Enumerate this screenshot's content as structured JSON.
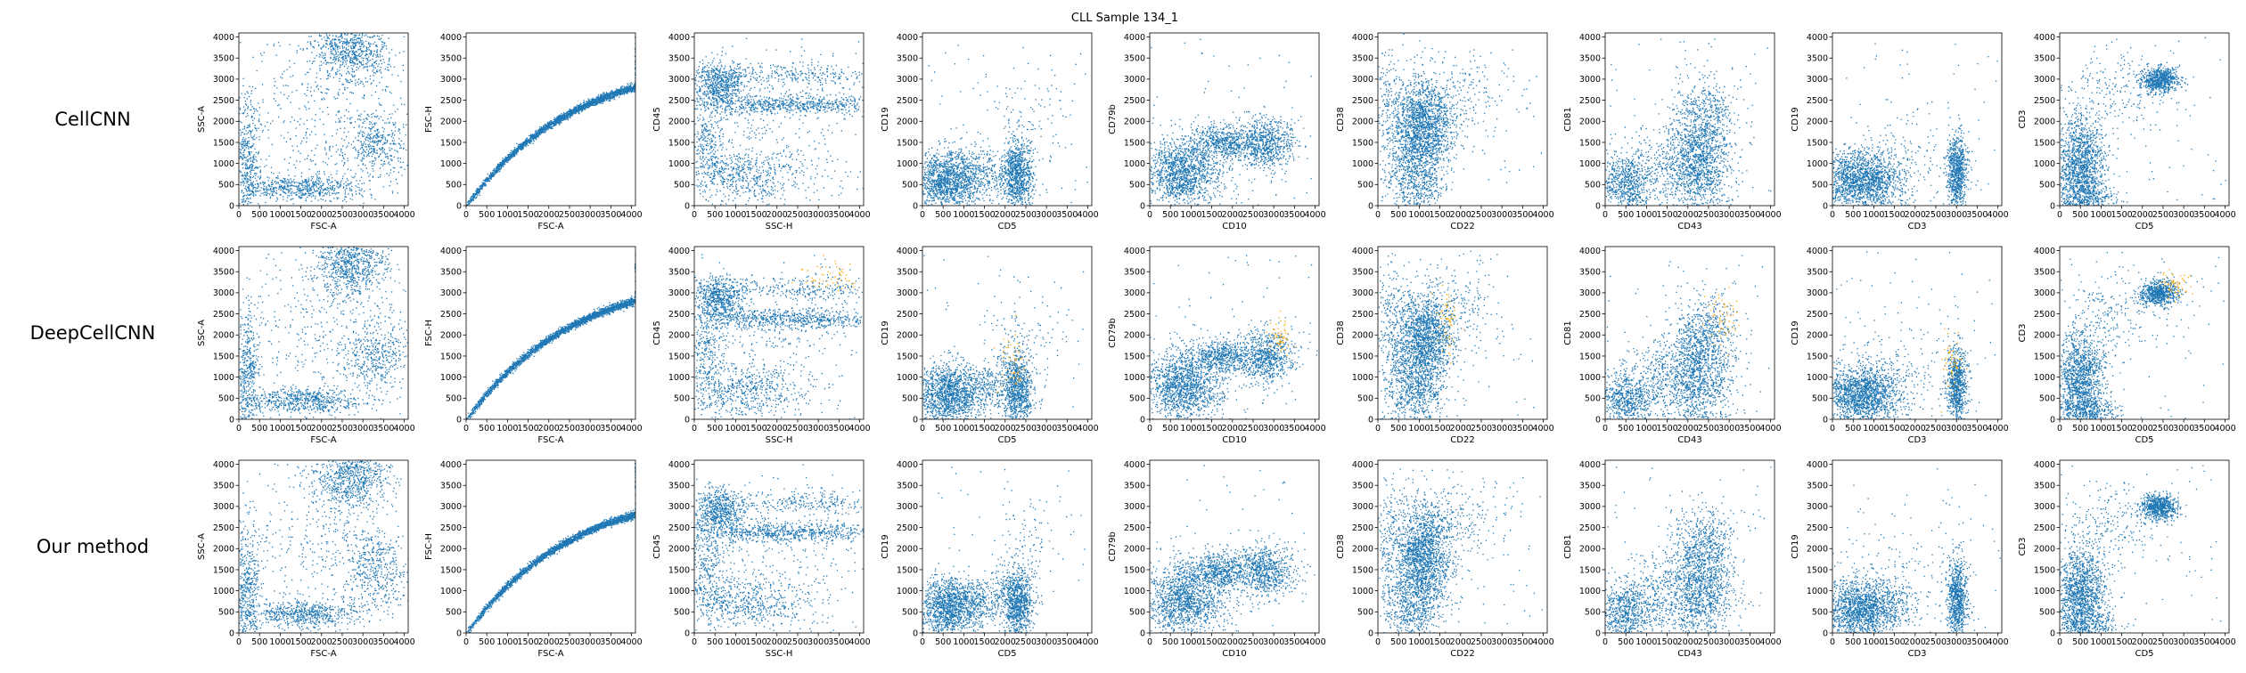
{
  "title": "CLL Sample 134_1",
  "colors": {
    "points": "#1f77b4",
    "highlight": "#ffa500",
    "axis": "#000000"
  },
  "ticks": [
    0,
    500,
    1000,
    1500,
    2000,
    2500,
    3000,
    3500,
    4000
  ],
  "chart_data": {
    "type": "scatter",
    "title": "CLL Sample 134_1",
    "xlim": [
      0,
      4096
    ],
    "ylim": [
      0,
      4096
    ],
    "rows": [
      {
        "method": "CellCNN",
        "highlight": false
      },
      {
        "method": "DeepCellCNN",
        "highlight": true
      },
      {
        "method": "Our method",
        "highlight": false
      }
    ],
    "panels": [
      {
        "xlabel": "FSC-A",
        "ylabel": "SSC-A",
        "clusters": [
          {
            "x": 2700,
            "y": 3700,
            "sx": 450,
            "sy": 400,
            "w": 0.3
          },
          {
            "x": 1500,
            "y": 450,
            "sx": 700,
            "sy": 150,
            "w": 0.22
          },
          {
            "x": 3300,
            "y": 1500,
            "sx": 400,
            "sy": 450,
            "w": 0.15
          },
          {
            "x": 200,
            "y": 1000,
            "sx": 150,
            "sy": 800,
            "w": 0.18
          },
          {
            "x": 2000,
            "y": 2000,
            "sx": 1100,
            "sy": 1100,
            "w": 0.15
          }
        ],
        "highlight_clusters": []
      },
      {
        "xlabel": "FSC-A",
        "ylabel": "FSC-H",
        "clusters": [],
        "curve": true,
        "highlight_clusters": []
      },
      {
        "xlabel": "SSC-H",
        "ylabel": "CD45",
        "clusters": [
          {
            "x": 600,
            "y": 2900,
            "sx": 300,
            "sy": 250,
            "w": 0.22
          },
          {
            "x": 2300,
            "y": 2400,
            "sx": 1200,
            "sy": 120,
            "w": 0.25
          },
          {
            "x": 2500,
            "y": 3100,
            "sx": 1000,
            "sy": 150,
            "w": 0.1
          },
          {
            "x": 1200,
            "y": 700,
            "sx": 800,
            "sy": 300,
            "w": 0.2
          },
          {
            "x": 300,
            "y": 1600,
            "sx": 250,
            "sy": 700,
            "w": 0.13
          },
          {
            "x": 1800,
            "y": 1700,
            "sx": 1200,
            "sy": 900,
            "w": 0.1
          }
        ],
        "highlight_clusters": [
          {
            "x": 3300,
            "y": 3400,
            "sx": 400,
            "sy": 200
          }
        ]
      },
      {
        "xlabel": "CD5",
        "ylabel": "CD19",
        "clusters": [
          {
            "x": 600,
            "y": 600,
            "sx": 400,
            "sy": 350,
            "w": 0.45
          },
          {
            "x": 2300,
            "y": 700,
            "sx": 180,
            "sy": 450,
            "w": 0.3
          },
          {
            "x": 1500,
            "y": 800,
            "sx": 500,
            "sy": 300,
            "w": 0.12
          },
          {
            "x": 2500,
            "y": 2000,
            "sx": 500,
            "sy": 600,
            "w": 0.03
          }
        ],
        "highlight_clusters": [
          {
            "x": 2200,
            "y": 1300,
            "sx": 200,
            "sy": 400
          }
        ]
      },
      {
        "xlabel": "CD10",
        "ylabel": "CD79b",
        "clusters": [
          {
            "x": 800,
            "y": 800,
            "sx": 450,
            "sy": 400,
            "w": 0.45
          },
          {
            "x": 1700,
            "y": 1500,
            "sx": 400,
            "sy": 200,
            "w": 0.2
          },
          {
            "x": 2800,
            "y": 1500,
            "sx": 350,
            "sy": 300,
            "w": 0.25
          },
          {
            "x": 1500,
            "y": 1000,
            "sx": 900,
            "sy": 700,
            "w": 0.05
          }
        ],
        "highlight_clusters": [
          {
            "x": 3150,
            "y": 1950,
            "sx": 120,
            "sy": 250
          }
        ]
      },
      {
        "xlabel": "CD22",
        "ylabel": "CD38",
        "clusters": [
          {
            "x": 1100,
            "y": 1900,
            "sx": 350,
            "sy": 550,
            "w": 0.55
          },
          {
            "x": 900,
            "y": 700,
            "sx": 350,
            "sy": 500,
            "w": 0.25
          },
          {
            "x": 1800,
            "y": 2700,
            "sx": 700,
            "sy": 500,
            "w": 0.08
          },
          {
            "x": 300,
            "y": 2200,
            "sx": 200,
            "sy": 800,
            "w": 0.07
          }
        ],
        "highlight_clusters": [
          {
            "x": 1700,
            "y": 2400,
            "sx": 150,
            "sy": 400
          }
        ]
      },
      {
        "xlabel": "CD43",
        "ylabel": "CD81",
        "clusters": [
          {
            "x": 2300,
            "y": 1200,
            "sx": 400,
            "sy": 800,
            "w": 0.5
          },
          {
            "x": 500,
            "y": 500,
            "sx": 350,
            "sy": 350,
            "w": 0.25
          },
          {
            "x": 1500,
            "y": 900,
            "sx": 600,
            "sy": 500,
            "w": 0.15
          },
          {
            "x": 2500,
            "y": 2300,
            "sx": 300,
            "sy": 300,
            "w": 0.05
          }
        ],
        "highlight_clusters": [
          {
            "x": 2800,
            "y": 2400,
            "sx": 200,
            "sy": 300
          }
        ]
      },
      {
        "xlabel": "CD3",
        "ylabel": "CD19",
        "clusters": [
          {
            "x": 700,
            "y": 600,
            "sx": 500,
            "sy": 350,
            "w": 0.6
          },
          {
            "x": 3000,
            "y": 800,
            "sx": 120,
            "sy": 450,
            "w": 0.28
          },
          {
            "x": 1700,
            "y": 1200,
            "sx": 900,
            "sy": 600,
            "w": 0.06
          }
        ],
        "highlight_clusters": [
          {
            "x": 2900,
            "y": 1400,
            "sx": 150,
            "sy": 350
          }
        ]
      },
      {
        "xlabel": "CD5",
        "ylabel": "CD3",
        "clusters": [
          {
            "x": 500,
            "y": 900,
            "sx": 300,
            "sy": 600,
            "w": 0.55
          },
          {
            "x": 2400,
            "y": 3000,
            "sx": 220,
            "sy": 150,
            "w": 0.25
          },
          {
            "x": 1300,
            "y": 2600,
            "sx": 700,
            "sy": 500,
            "w": 0.08
          },
          {
            "x": 700,
            "y": 200,
            "sx": 400,
            "sy": 150,
            "w": 0.08
          }
        ],
        "highlight_clusters": [
          {
            "x": 2800,
            "y": 3200,
            "sx": 200,
            "sy": 200
          }
        ]
      }
    ]
  }
}
